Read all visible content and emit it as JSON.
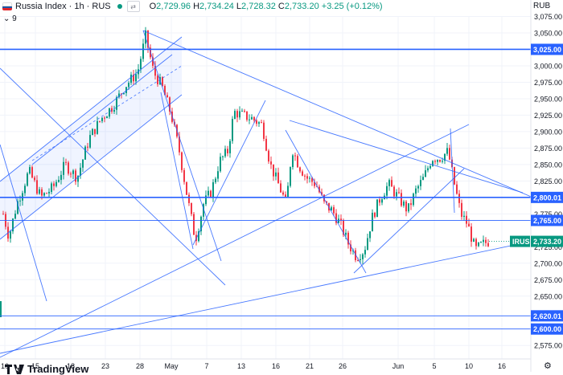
{
  "header": {
    "symbol": "Russia Index · 1h · RUS",
    "open": "2,729.96",
    "high": "2,734.24",
    "low": "2,728.32",
    "close": "2,733.20",
    "change": "+3.25 (+0.12%)",
    "open_prefix": "O",
    "high_prefix": "H",
    "low_prefix": "L",
    "close_prefix": "C",
    "compare_icon": "swap-icon",
    "flag": "russia-flag"
  },
  "indicator_row": {
    "label": "9",
    "icon": "chevron-down-icon"
  },
  "currency": "RUB",
  "logo": "TradingView",
  "colors": {
    "up": "#089981",
    "down": "#f23645",
    "line": "#2962ff",
    "grid": "#f0f3fa",
    "price_tag": "#089981"
  },
  "y_ticks": [
    "3,075.00",
    "3,050.00",
    "3,000.00",
    "2,975.00",
    "2,950.00",
    "2,925.00",
    "2,900.00",
    "2,875.00",
    "2,850.00",
    "2,825.00",
    "2,775.00",
    "2,725.00",
    "2,700.00",
    "2,675.00",
    "2,650.00",
    "2,575.00"
  ],
  "x_ticks": [
    "10",
    "15",
    "18",
    "23",
    "28",
    "May",
    "7",
    "13",
    "16",
    "21",
    "26",
    "Jun",
    "5",
    "10",
    "16"
  ],
  "price_labels": [
    {
      "text": "3,025.00",
      "style": "blue"
    },
    {
      "text": "2,800.01",
      "style": "blue"
    },
    {
      "text": "2,765.00",
      "style": "blue"
    },
    {
      "text": "2,733.20",
      "style": "green",
      "tag": "IRUS"
    },
    {
      "text": "2,620.01",
      "style": "blue"
    },
    {
      "text": "2,600.00",
      "style": "blue"
    }
  ],
  "chart_data": {
    "type": "candlestick",
    "y_range": [
      2570,
      3085
    ],
    "horizontal_levels": [
      3025.0,
      2800.01,
      2765.0,
      2620.01,
      2600.0
    ],
    "last_price": 2733.2
  }
}
